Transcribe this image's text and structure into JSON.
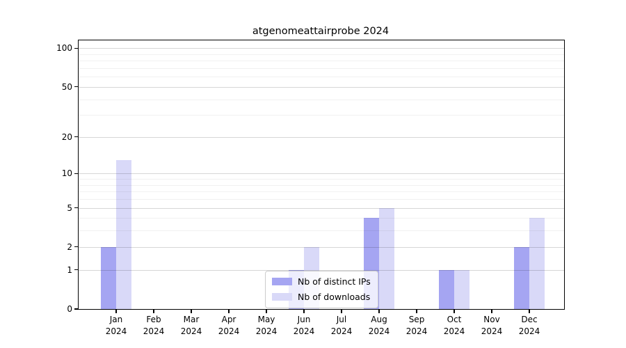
{
  "chart_data": {
    "type": "bar",
    "title": "atgenomeattairprobe 2024",
    "categories": [
      "Jan",
      "Feb",
      "Mar",
      "Apr",
      "May",
      "Jun",
      "Jul",
      "Aug",
      "Sep",
      "Oct",
      "Nov",
      "Dec"
    ],
    "year_label": "2024",
    "series": [
      {
        "name": "Nb of distinct IPs",
        "color": "#a5a5f2",
        "values": [
          2,
          0,
          0,
          0,
          0,
          1,
          0,
          4,
          0,
          1,
          0,
          2
        ]
      },
      {
        "name": "Nb of downloads",
        "color": "#d9d9f8",
        "values": [
          13,
          0,
          0,
          0,
          0,
          2,
          0,
          5,
          0,
          1,
          0,
          4
        ]
      }
    ],
    "yticks": [
      0,
      1,
      2,
      5,
      10,
      20,
      50,
      100
    ],
    "minor_gridlines": [
      3,
      4,
      6,
      7,
      8,
      9,
      30,
      40,
      60,
      70,
      80,
      90
    ],
    "y_scale": "log10(1+x)",
    "ylim": [
      0,
      115
    ],
    "xlabel": "",
    "ylabel": "",
    "grid": true,
    "legend_position": "lower center"
  },
  "colors": {
    "axis": "#000000",
    "major_grid": "#cccccc",
    "minor_grid": "#eeeeee",
    "background": "#ffffff"
  }
}
